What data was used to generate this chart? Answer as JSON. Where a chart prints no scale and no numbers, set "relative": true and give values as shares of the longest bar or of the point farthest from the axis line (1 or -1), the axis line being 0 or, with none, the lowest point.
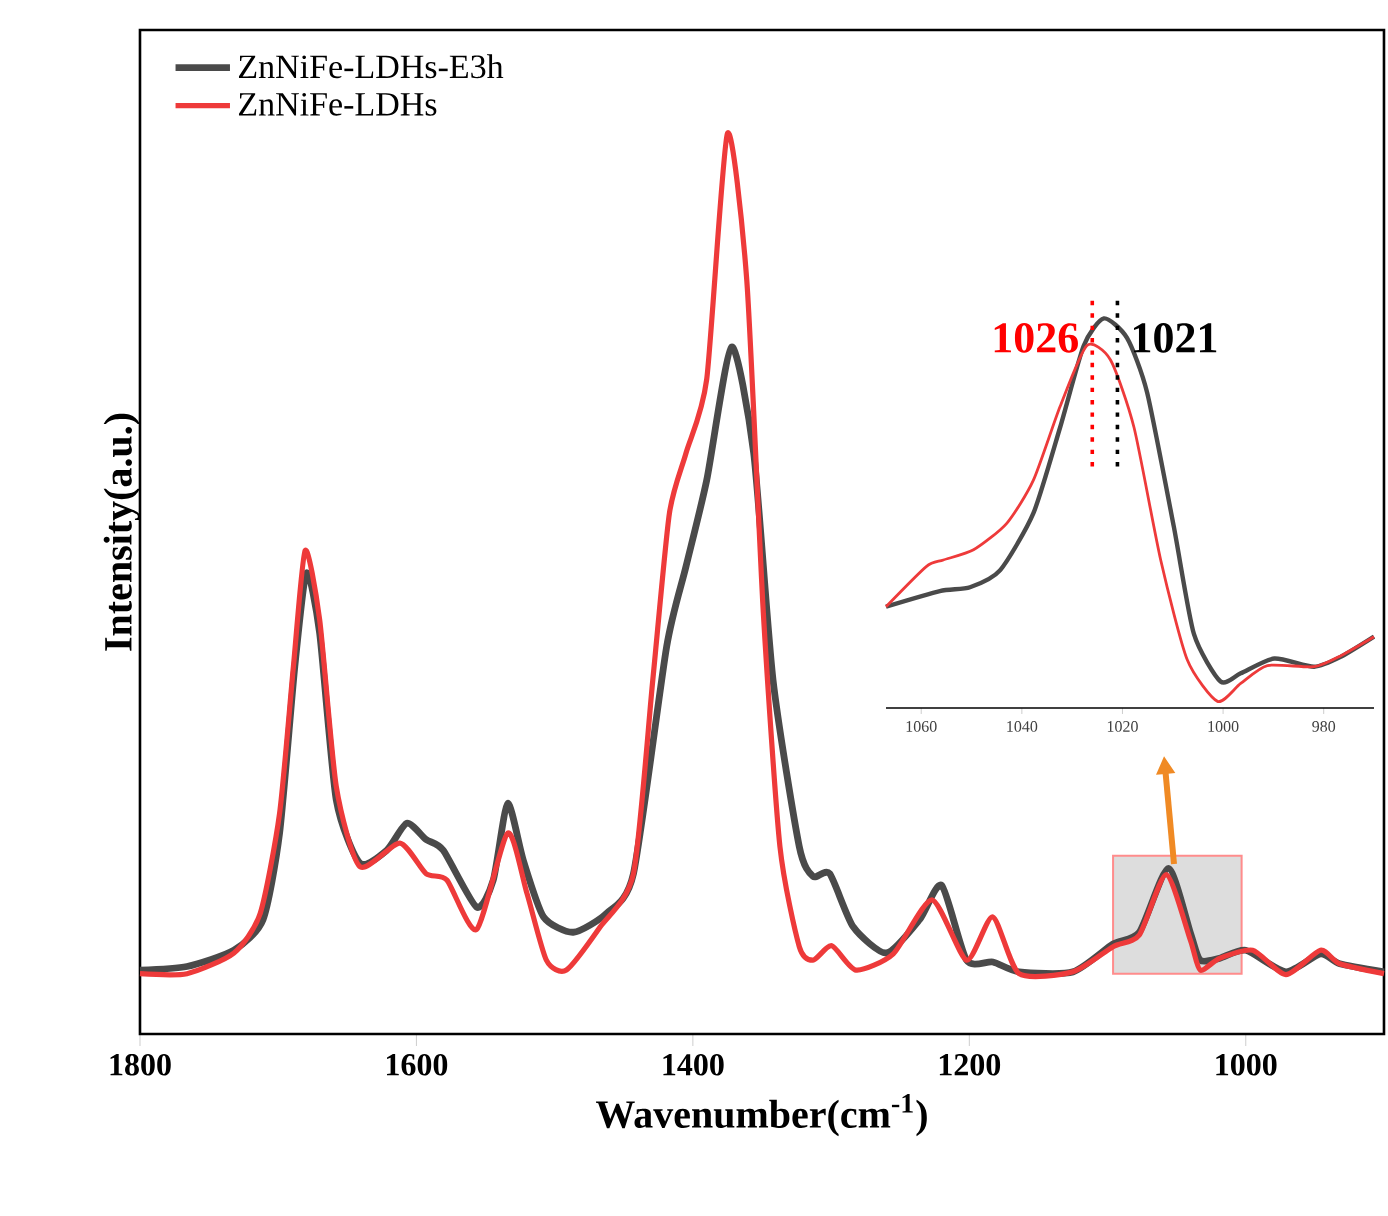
{
  "chart_data": [
    {
      "type": "line",
      "xlabel": "Wavenumber(cm$^{-1}$)",
      "ylabel": "Intensity(a.u.)",
      "relative": true,
      "xlim": [
        1800,
        900
      ],
      "xticks": [
        1800,
        1600,
        1400,
        1200,
        1000
      ],
      "legend": "top left",
      "bands": [
        {
          "axis": "x",
          "from": 1096,
          "to": 1003,
          "color": "#dddddd"
        }
      ],
      "series": [
        {
          "name": "ZnNiFe-LDHs-E3h",
          "color": "#4a4a4a",
          "x": [
            1800,
            1766,
            1732,
            1711,
            1699,
            1688,
            1679.5,
            1670,
            1658,
            1641,
            1621.5,
            1607,
            1593,
            1580.6,
            1556.5,
            1544.4,
            1534,
            1522.7,
            1508,
            1486.5,
            1462.5,
            1443,
            1419,
            1405,
            1390,
            1372,
            1356,
            1342,
            1323,
            1313,
            1301,
            1284,
            1260,
            1236,
            1220,
            1202,
            1183,
            1164,
            1125,
            1096,
            1077,
            1056,
            1040,
            1033,
            1019,
            1000,
            971,
            946,
            932,
            900
          ],
          "values": [
            0.071,
            0.075,
            0.093,
            0.127,
            0.223,
            0.408,
            0.512,
            0.445,
            0.26,
            0.19,
            0.204,
            0.234,
            0.216,
            0.204,
            0.141,
            0.171,
            0.256,
            0.193,
            0.13,
            0.113,
            0.134,
            0.178,
            0.43,
            0.519,
            0.615,
            0.763,
            0.645,
            0.393,
            0.208,
            0.175,
            0.178,
            0.119,
            0.09,
            0.127,
            0.165,
            0.082,
            0.08,
            0.069,
            0.069,
            0.1,
            0.113,
            0.184,
            0.112,
            0.082,
            0.084,
            0.093,
            0.069,
            0.089,
            0.078,
            0.069
          ]
        },
        {
          "name": "ZnNiFe-LDHs",
          "color": "#ee3a3a",
          "x": [
            1800,
            1766,
            1732,
            1713,
            1699,
            1689,
            1680.5,
            1670,
            1658,
            1641,
            1612,
            1593,
            1578,
            1556.5,
            1534,
            1520,
            1506,
            1491.5,
            1467,
            1443,
            1429,
            1417,
            1405,
            1390,
            1375,
            1361,
            1349,
            1337,
            1323,
            1313,
            1299.5,
            1282,
            1255,
            1227,
            1202,
            1183,
            1164,
            1125,
            1096,
            1077,
            1057.5,
            1040,
            1033,
            1019,
            995,
            971,
            946,
            932,
            900
          ],
          "values": [
            0.067,
            0.067,
            0.09,
            0.134,
            0.245,
            0.408,
            0.537,
            0.46,
            0.275,
            0.186,
            0.212,
            0.178,
            0.171,
            0.116,
            0.223,
            0.156,
            0.082,
            0.071,
            0.119,
            0.178,
            0.393,
            0.578,
            0.645,
            0.727,
            1.0,
            0.837,
            0.467,
            0.208,
            0.097,
            0.082,
            0.098,
            0.071,
            0.089,
            0.149,
            0.082,
            0.13,
            0.067,
            0.069,
            0.097,
            0.11,
            0.177,
            0.104,
            0.071,
            0.084,
            0.093,
            0.066,
            0.093,
            0.078,
            0.067
          ]
        }
      ]
    },
    {
      "type": "line",
      "relative": true,
      "xlim": [
        1067,
        970
      ],
      "xticks": [
        1060,
        1040,
        1020,
        1000,
        980
      ],
      "ref_lines": [
        {
          "axis": "x",
          "value": 1026,
          "label": "1026",
          "color": "#ff0000",
          "line_style": "dotted"
        },
        {
          "axis": "x",
          "value": 1021,
          "label": "1021",
          "color": "#000000",
          "line_style": "dotted"
        }
      ],
      "series": [
        {
          "color": "#4a4a4a",
          "x": [
            1067,
            1056.3,
            1050.3,
            1044.3,
            1037.7,
            1032.4,
            1027.7,
            1023.7,
            1019.1,
            1015.1,
            1009.8,
            1005.8,
            1000.5,
            996.5,
            989.8,
            981.9,
            976.5,
            970
          ],
          "values": [
            0.26,
            0.3,
            0.31,
            0.354,
            0.5,
            0.72,
            0.93,
            1.0,
            0.95,
            0.81,
            0.466,
            0.19,
            0.068,
            0.089,
            0.127,
            0.106,
            0.132,
            0.183
          ]
        },
        {
          "color": "#ee3a3a",
          "x": [
            1067,
            1059,
            1055.6,
            1049.6,
            1043,
            1037.7,
            1032.4,
            1027.1,
            1022.4,
            1017.7,
            1012.4,
            1007.1,
            1001.1,
            996.5,
            991.2,
            981.9,
            976.5,
            970
          ],
          "values": [
            0.26,
            0.363,
            0.38,
            0.406,
            0.474,
            0.585,
            0.774,
            0.93,
            0.894,
            0.72,
            0.38,
            0.123,
            0.017,
            0.063,
            0.109,
            0.106,
            0.135,
            0.183
          ]
        }
      ]
    }
  ]
}
